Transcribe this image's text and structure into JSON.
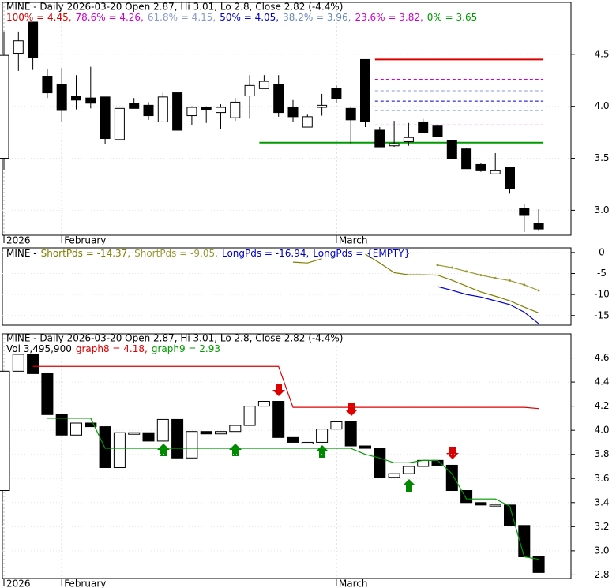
{
  "chart_data": [
    {
      "type": "candlestick",
      "title": "MINE - Daily 2026-03-20 Open 2.87, Hi 3.01, Lo 2.8, Close 2.82 (-4.4%)",
      "categories": [
        "2026",
        null,
        null,
        null,
        "February",
        null,
        null,
        null,
        null,
        null,
        null,
        null,
        null,
        null,
        null,
        null,
        null,
        null,
        null,
        null,
        null,
        null,
        null,
        "March",
        null,
        null,
        null,
        null,
        null,
        null,
        null,
        null,
        null,
        null,
        null,
        null,
        null,
        null
      ],
      "open": [
        3.5,
        4.51,
        4.81,
        4.29,
        4.21,
        4.1,
        4.08,
        4.09,
        3.68,
        4.03,
        4.01,
        3.85,
        4.13,
        3.91,
        3.99,
        3.94,
        3.89,
        4.1,
        4.17,
        4.21,
        3.99,
        3.8,
        3.99,
        4.17,
        3.98,
        4.45,
        3.77,
        3.62,
        3.66,
        3.85,
        3.81,
        3.67,
        3.59,
        3.44,
        3.35,
        3.41,
        3.02,
        2.87
      ],
      "high": [
        4.72,
        4.72,
        4.81,
        4.36,
        4.37,
        4.3,
        4.38,
        4.09,
        3.98,
        4.08,
        4.04,
        4.13,
        4.13,
        4.0,
        4.0,
        4.02,
        4.08,
        4.3,
        4.3,
        4.3,
        4.06,
        3.92,
        4.12,
        4.2,
        3.99,
        4.45,
        3.8,
        3.86,
        3.84,
        3.88,
        3.82,
        3.67,
        3.6,
        3.45,
        3.55,
        3.41,
        3.06,
        3.01
      ],
      "low": [
        3.39,
        4.34,
        4.35,
        4.08,
        3.85,
        3.97,
        3.98,
        3.64,
        3.68,
        3.98,
        3.87,
        3.85,
        3.77,
        3.82,
        3.84,
        3.78,
        3.86,
        3.88,
        4.17,
        3.9,
        3.85,
        3.8,
        3.91,
        4.03,
        3.64,
        3.8,
        3.61,
        3.61,
        3.62,
        3.74,
        3.71,
        3.5,
        3.4,
        3.37,
        3.35,
        3.16,
        2.79,
        2.8
      ],
      "close": [
        4.49,
        4.63,
        4.47,
        4.13,
        3.96,
        4.06,
        4.03,
        3.69,
        3.98,
        3.98,
        3.91,
        4.09,
        3.77,
        3.99,
        3.97,
        3.99,
        4.04,
        4.2,
        4.24,
        3.94,
        3.9,
        3.9,
        4.01,
        4.07,
        3.87,
        3.85,
        3.61,
        3.64,
        3.7,
        3.75,
        3.71,
        3.5,
        3.4,
        3.38,
        3.38,
        3.21,
        2.95,
        2.82
      ],
      "fib": [
        {
          "label": "100% = 4.45,",
          "value": 4.45,
          "color": "#dd0000"
        },
        {
          "label": "78.6% = 4.26,",
          "value": 4.26,
          "color": "#cc00cc"
        },
        {
          "label": "61.8% = 4.15,",
          "value": 4.15,
          "color": "#8899cc"
        },
        {
          "label": "50% = 4.05,",
          "value": 4.05,
          "color": "#0000cc"
        },
        {
          "label": "38.2% = 3.96,",
          "value": 3.96,
          "color": "#6688bb"
        },
        {
          "label": "23.6% = 3.82,",
          "value": 3.82,
          "color": "#cc00cc"
        },
        {
          "label": "0% = 3.65",
          "value": 3.65,
          "color": "#009900"
        }
      ],
      "ylim": [
        2.76,
        5.0
      ],
      "yticks": [
        {
          "value": 3,
          "label": "3.0"
        },
        3.5,
        {
          "value": 4,
          "label": "4.0"
        },
        4.5
      ]
    },
    {
      "type": "line",
      "title": "MINE -",
      "series": [
        {
          "name": "ShortPds",
          "label": "ShortPds = -14.37,",
          "color": "#808000",
          "values": [
            null,
            null,
            null,
            null,
            null,
            null,
            null,
            null,
            null,
            null,
            null,
            null,
            null,
            null,
            null,
            null,
            null,
            null,
            null,
            null,
            -2.3,
            -2.5,
            -1.5,
            null,
            null,
            -0.4,
            -2.5,
            -4.8,
            -5.3,
            -5.3,
            -5.4,
            -6.6,
            -8.0,
            -9.4,
            -10.4,
            -11.5,
            -13.0,
            -14.37
          ]
        },
        {
          "name": "ShortPds",
          "label": "ShortPds = -9.05,",
          "color": "#999933",
          "values": [
            null,
            null,
            null,
            null,
            null,
            null,
            null,
            null,
            null,
            null,
            null,
            null,
            null,
            null,
            null,
            null,
            null,
            null,
            null,
            null,
            null,
            null,
            null,
            null,
            null,
            null,
            null,
            null,
            null,
            null,
            -3.0,
            -3.6,
            -4.5,
            -5.4,
            -6.1,
            -6.7,
            -7.7,
            -9.05
          ]
        },
        {
          "name": "LongPds",
          "label": "LongPds = -16.94,",
          "color": "#0000cc",
          "values": [
            null,
            null,
            null,
            null,
            null,
            null,
            null,
            null,
            null,
            null,
            null,
            null,
            null,
            null,
            null,
            null,
            null,
            null,
            null,
            null,
            null,
            null,
            null,
            null,
            null,
            null,
            null,
            null,
            null,
            null,
            -8.1,
            -9.0,
            -10.0,
            -10.6,
            -11.5,
            -12.4,
            -14.2,
            -16.94
          ]
        },
        {
          "name": "LongPds",
          "label": "LongPds = {EMPTY}",
          "color": "#0000cc"
        }
      ],
      "ylim": [
        -17.3,
        1.1
      ],
      "yticks": [
        0,
        -5,
        -10,
        -15
      ]
    },
    {
      "type": "box",
      "title": "MINE - Daily 2026-03-20 Open 2.87, Hi 3.01, Lo 2.8, Close 2.82 (-4.4%)",
      "volume_label": "Vol 3,495,900",
      "categories": [
        "2026",
        null,
        null,
        null,
        "February",
        null,
        null,
        null,
        null,
        null,
        null,
        null,
        null,
        null,
        null,
        null,
        null,
        null,
        null,
        null,
        null,
        null,
        null,
        "March",
        null,
        null,
        null,
        null,
        null,
        null,
        null,
        null,
        null,
        null,
        null,
        null,
        null,
        null
      ],
      "series": [
        {
          "name": "graph8",
          "label": "graph8 = 4.18,",
          "color": "#dd0000",
          "values": [
            null,
            null,
            4.53,
            4.53,
            4.53,
            4.53,
            4.53,
            4.53,
            4.53,
            4.53,
            4.53,
            4.53,
            4.53,
            4.53,
            4.53,
            4.53,
            4.53,
            4.53,
            4.53,
            4.53,
            4.19,
            4.19,
            4.19,
            4.19,
            4.19,
            4.19,
            4.19,
            4.19,
            4.19,
            4.19,
            4.19,
            4.19,
            4.19,
            4.19,
            4.19,
            4.19,
            4.19,
            4.18
          ]
        },
        {
          "name": "graph9",
          "label": "graph9 = 2.93",
          "color": "#009900",
          "values": [
            null,
            null,
            null,
            4.1,
            4.1,
            4.1,
            4.1,
            3.85,
            3.85,
            3.85,
            3.85,
            3.85,
            3.85,
            3.85,
            3.85,
            3.85,
            3.85,
            3.85,
            3.85,
            3.85,
            3.85,
            3.85,
            3.85,
            3.85,
            3.85,
            3.8,
            3.77,
            3.73,
            3.73,
            3.75,
            3.75,
            3.64,
            3.43,
            3.43,
            3.43,
            3.37,
            2.95,
            2.93
          ]
        }
      ],
      "ylim": [
        2.77,
        4.8
      ],
      "yticks": [
        2.8,
        {
          "value": 3,
          "label": "3.0"
        },
        3.2,
        3.4,
        3.6,
        3.8,
        {
          "value": 4,
          "label": "4.0"
        },
        4.2,
        4.4,
        4.6
      ]
    }
  ]
}
